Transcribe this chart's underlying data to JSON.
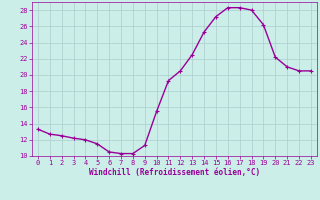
{
  "x": [
    0,
    1,
    2,
    3,
    4,
    5,
    6,
    7,
    8,
    9,
    10,
    11,
    12,
    13,
    14,
    15,
    16,
    17,
    18,
    19,
    20,
    21,
    22,
    23
  ],
  "y": [
    13.3,
    12.7,
    12.5,
    12.2,
    12.0,
    11.5,
    10.5,
    10.3,
    10.3,
    11.3,
    15.5,
    19.3,
    20.5,
    22.5,
    25.3,
    27.2,
    28.3,
    28.3,
    28.0,
    26.2,
    22.2,
    21.0,
    20.5,
    20.5
  ],
  "line_color": "#990099",
  "marker": "+",
  "marker_size": 3,
  "marker_linewidth": 0.8,
  "bg_color": "#cceee8",
  "grid_color": "#aacccc",
  "xlabel": "Windchill (Refroidissement éolien,°C)",
  "xlabel_color": "#990099",
  "tick_color": "#990099",
  "ylim": [
    10,
    29
  ],
  "xlim": [
    -0.5,
    23.5
  ],
  "yticks": [
    10,
    12,
    14,
    16,
    18,
    20,
    22,
    24,
    26,
    28
  ],
  "xticks": [
    0,
    1,
    2,
    3,
    4,
    5,
    6,
    7,
    8,
    9,
    10,
    11,
    12,
    13,
    14,
    15,
    16,
    17,
    18,
    19,
    20,
    21,
    22,
    23
  ],
  "tick_fontsize": 5,
  "xlabel_fontsize": 5.5,
  "line_width": 1.0
}
